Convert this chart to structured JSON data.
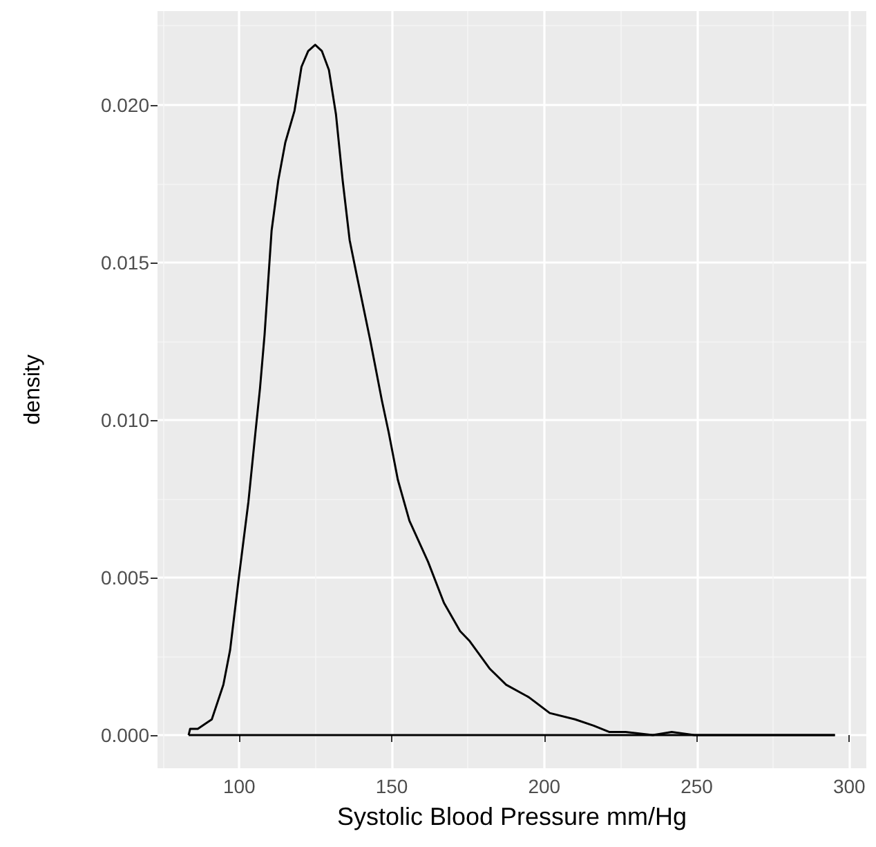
{
  "chart_data": {
    "type": "line",
    "xlabel": "Systolic Blood Pressure mm/Hg",
    "ylabel": "density",
    "series": [
      {
        "color": "#000000",
        "x": [
          83.4,
          83.9,
          86.4,
          91,
          94.8,
          97,
          100,
          103,
          105.3,
          106.8,
          108.3,
          110.6,
          112.8,
          115.1,
          118.1,
          120.4,
          122.6,
          124.9,
          127.1,
          129.4,
          131.7,
          133.9,
          136.2,
          138.5,
          143,
          146.8,
          149,
          152,
          155.8,
          161.9,
          167.1,
          172.4,
          175.4,
          182.2,
          187.5,
          195,
          201.8,
          210.1,
          216.2,
          221.4,
          226.7,
          235.6,
          241.8,
          249.2,
          256.9,
          287.1,
          295.3
        ],
        "values": [
          0,
          0.0002,
          0.0002,
          0.0005,
          0.0016,
          0.0027,
          0.0051,
          0.0074,
          0.0096,
          0.011,
          0.0127,
          0.016,
          0.0176,
          0.0188,
          0.0198,
          0.0212,
          0.0217,
          0.0219,
          0.0217,
          0.0211,
          0.0197,
          0.0176,
          0.0157,
          0.0146,
          0.0125,
          0.0106,
          0.0096,
          0.0081,
          0.0068,
          0.0055,
          0.0042,
          0.0033,
          0.003,
          0.0021,
          0.0016,
          0.0012,
          0.0007,
          0.0005,
          0.0003,
          0.0001,
          0.0001,
          0,
          0.0001,
          0,
          0,
          0,
          0
        ]
      },
      {
        "color": "#000000",
        "x": [
          83.4,
          295.3
        ],
        "values": [
          0,
          0
        ]
      }
    ],
    "marker": "none",
    "line_style": "solid",
    "xlim": [
      73.2,
      305.6
    ],
    "xticks": [
      100,
      150,
      200,
      250,
      300
    ],
    "ylim": [
      -0.00105,
      0.02297
    ],
    "yticks": [
      {
        "value": 0,
        "label": "0.000"
      },
      {
        "value": 0.005,
        "label": "0.005"
      },
      {
        "value": 0.01,
        "label": "0.010"
      },
      {
        "value": 0.015,
        "label": "0.015"
      },
      {
        "value": 0.02,
        "label": "0.020"
      }
    ],
    "grid": true
  }
}
